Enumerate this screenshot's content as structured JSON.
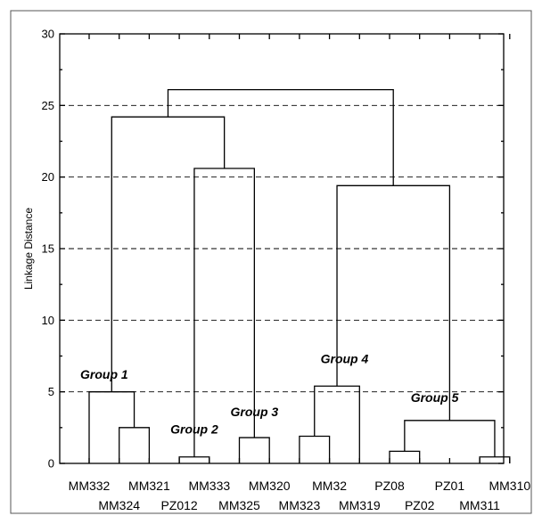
{
  "chart_data": {
    "type": "dendrogram",
    "ylabel": "Linkage Distance",
    "ylim": [
      0,
      30
    ],
    "yticks": [
      0,
      5,
      10,
      15,
      20,
      25,
      30
    ],
    "grid": "horizontal dashed at major ticks",
    "leaves": [
      "MM332",
      "MM324",
      "MM321",
      "PZ012",
      "MM333",
      "MM325",
      "MM320",
      "MM323",
      "MM32",
      "MM319",
      "PZ08",
      "PZ02",
      "PZ01",
      "MM311",
      "MM310"
    ],
    "label_rows": {
      "top": [
        "MM332",
        "MM321",
        "MM333",
        "MM320",
        "MM32",
        "PZ08",
        "PZ01",
        "MM310"
      ],
      "bottom": [
        "MM324",
        "PZ012",
        "MM325",
        "MM323",
        "MM319",
        "PZ02",
        "MM311"
      ]
    },
    "merges": [
      {
        "left": "MM324",
        "right": "MM321",
        "height": 2.5
      },
      {
        "left": "MM332",
        "right": "(MM324, MM321)",
        "height": 5.0
      },
      {
        "left": "PZ012",
        "right": "MM333",
        "height": 0.45
      },
      {
        "left": "MM325",
        "right": "MM320",
        "height": 1.8
      },
      {
        "left": "(PZ012, MM333)",
        "right": "(MM325, MM320)",
        "height": 20.6
      },
      {
        "left": "Group 1",
        "right": "(Group 2, Group 3)",
        "height": 24.2
      },
      {
        "left": "MM323",
        "right": "MM32",
        "height": 1.9
      },
      {
        "left": "(MM323, MM32)",
        "right": "MM319",
        "height": 5.4
      },
      {
        "left": "PZ08",
        "right": "PZ02",
        "height": 0.85
      },
      {
        "left": "MM311",
        "right": "MM310",
        "height": 0.45
      },
      {
        "left": "(PZ08, PZ02)",
        "right": "(MM311, MM310)",
        "height": 3.0
      },
      {
        "left": "Group 4",
        "right": "Group 5",
        "height": 19.4
      },
      {
        "left": "(Groups 1-3)",
        "right": "(Groups 4-5)",
        "height": 26.1
      }
    ],
    "annotations": [
      {
        "text": "Group 1",
        "near": "MM332 / MM324",
        "y": 5.9
      },
      {
        "text": "Group 2",
        "near": "PZ012 / MM333",
        "y": 2.1
      },
      {
        "text": "Group 3",
        "near": "MM325 / MM320",
        "y": 3.3
      },
      {
        "text": "Group 4",
        "near": "MM32 / MM319",
        "y": 7.0
      },
      {
        "text": "Group 5",
        "near": "PZ02 / PZ01",
        "y": 4.3
      }
    ]
  }
}
